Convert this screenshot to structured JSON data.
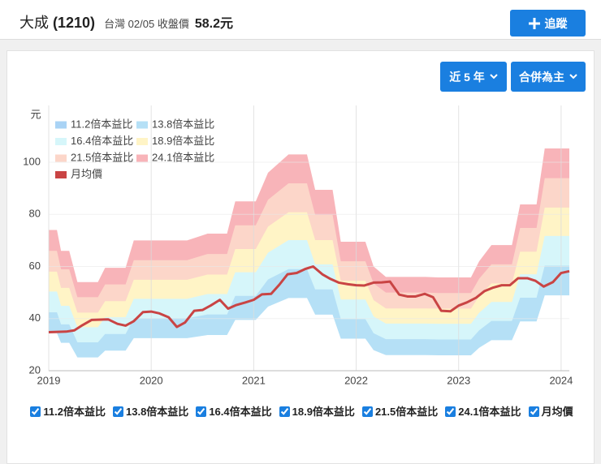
{
  "header": {
    "name": "大成",
    "code": "(1210)",
    "market_info": "台灣 02/05 收盤價",
    "price": "58.2元",
    "follow_button": "追蹤"
  },
  "controls": {
    "period": "近 5 年",
    "report": "合併為主"
  },
  "chart_data": {
    "type": "band",
    "y_unit": "元",
    "x": [
      2019.0,
      2019.08,
      2019.12,
      2019.2,
      2019.28,
      2019.48,
      2019.55,
      2019.75,
      2019.83,
      2020.35,
      2020.55,
      2020.74,
      2020.82,
      2021.02,
      2021.14,
      2021.34,
      2021.52,
      2021.6,
      2021.77,
      2021.85,
      2022.09,
      2022.17,
      2022.29,
      2022.68,
      2022.8,
      2023.12,
      2023.2,
      2023.32,
      2023.52,
      2023.6,
      2023.76,
      2023.84,
      2024.08
    ],
    "series": [
      {
        "name": "11.2倍本益比",
        "color": "#a9d3f5",
        "values": [
          34.4,
          34.4,
          30.7,
          30.7,
          25.1,
          25.1,
          27.7,
          27.7,
          32.5,
          32.5,
          33.7,
          33.7,
          39.5,
          39.5,
          44.6,
          47.9,
          47.9,
          41.5,
          41.5,
          32.3,
          32.3,
          27.9,
          26.0,
          26.0,
          25.9,
          25.9,
          28.8,
          31.7,
          31.7,
          38.9,
          38.9,
          48.9,
          48.9
        ]
      },
      {
        "name": "13.8倍本益比",
        "color": "#b5e0f6",
        "values": [
          42.4,
          42.4,
          37.8,
          37.8,
          30.9,
          30.9,
          34.1,
          34.1,
          40.1,
          40.1,
          41.6,
          41.6,
          48.7,
          48.7,
          55.0,
          59.0,
          59.0,
          51.2,
          51.2,
          39.8,
          39.8,
          34.4,
          32.1,
          32.1,
          32.0,
          32.0,
          35.5,
          39.1,
          39.1,
          48.0,
          48.0,
          60.3,
          60.3
        ]
      },
      {
        "name": "16.4倍本益比",
        "color": "#d6f6fa",
        "values": [
          50.4,
          50.4,
          44.9,
          44.9,
          36.7,
          36.7,
          40.5,
          40.5,
          47.6,
          47.6,
          49.4,
          49.4,
          57.8,
          57.8,
          65.3,
          70.1,
          70.1,
          60.8,
          60.8,
          47.3,
          47.3,
          40.8,
          38.1,
          38.1,
          38.0,
          38.0,
          42.2,
          46.4,
          46.4,
          57.0,
          57.0,
          71.7,
          71.7
        ]
      },
      {
        "name": "18.9倍本益比",
        "color": "#fff4c6",
        "values": [
          58.0,
          58.0,
          51.8,
          51.8,
          42.3,
          42.3,
          46.7,
          46.7,
          54.9,
          54.9,
          56.9,
          56.9,
          66.7,
          66.7,
          75.3,
          80.8,
          80.8,
          70.1,
          70.1,
          54.5,
          54.5,
          47.1,
          43.9,
          43.9,
          43.8,
          43.8,
          48.6,
          53.5,
          53.5,
          65.7,
          65.7,
          82.6,
          82.6
        ]
      },
      {
        "name": "21.5倍本益比",
        "color": "#fcd6c9",
        "values": [
          66.0,
          66.0,
          58.9,
          58.9,
          48.2,
          48.2,
          53.1,
          53.1,
          62.4,
          62.4,
          64.8,
          64.8,
          75.8,
          75.8,
          85.6,
          91.9,
          91.9,
          79.8,
          79.8,
          62.0,
          62.0,
          53.5,
          50.0,
          50.0,
          49.8,
          49.8,
          55.3,
          60.8,
          60.8,
          74.8,
          74.8,
          93.9,
          93.9
        ]
      },
      {
        "name": "24.1倍本益比",
        "color": "#f8b4b9",
        "values": [
          74,
          74,
          66,
          66,
          54,
          54,
          59.5,
          59.5,
          70,
          70,
          72.6,
          72.6,
          85,
          85,
          96,
          103,
          103,
          89.4,
          89.4,
          69.5,
          69.5,
          60,
          56,
          56,
          55.8,
          55.8,
          62,
          68.2,
          68.2,
          83.8,
          83.8,
          105.3,
          105.3
        ]
      },
      {
        "name": "月均價",
        "color": "#c94444",
        "type": "line",
        "x": [
          2019.0,
          2019.17,
          2019.25,
          2019.33,
          2019.42,
          2019.58,
          2019.67,
          2019.75,
          2019.83,
          2019.92,
          2020.0,
          2020.08,
          2020.17,
          2020.25,
          2020.33,
          2020.42,
          2020.5,
          2020.58,
          2020.67,
          2020.75,
          2020.83,
          2020.92,
          2021.0,
          2021.08,
          2021.17,
          2021.25,
          2021.33,
          2021.42,
          2021.5,
          2021.58,
          2021.67,
          2021.75,
          2021.83,
          2021.92,
          2022.0,
          2022.08,
          2022.17,
          2022.25,
          2022.33,
          2022.42,
          2022.5,
          2022.58,
          2022.67,
          2022.75,
          2022.83,
          2022.92,
          2023.0,
          2023.08,
          2023.17,
          2023.25,
          2023.33,
          2023.42,
          2023.5,
          2023.58,
          2023.67,
          2023.75,
          2023.83,
          2023.92,
          2024.0,
          2024.08
        ],
        "values": [
          34.8,
          35,
          35.5,
          37.5,
          39.5,
          39.7,
          38,
          37.3,
          39,
          42.5,
          42.7,
          42,
          40.5,
          36.8,
          38.5,
          43,
          43.3,
          45,
          47.2,
          43.8,
          45.2,
          46.2,
          47.2,
          49.3,
          49.5,
          53,
          57,
          57.5,
          59,
          60,
          57,
          55.2,
          53.8,
          53.2,
          52.8,
          52.7,
          53.8,
          53.9,
          54.2,
          49.2,
          48.5,
          48.5,
          49.5,
          48.2,
          43,
          42.8,
          45,
          46.2,
          48,
          50.5,
          51.8,
          52.8,
          52.8,
          55.5,
          55.5,
          54.5,
          52.3,
          54,
          57.5,
          58.2
        ]
      }
    ],
    "xlim": [
      2019,
      2024.08
    ],
    "xticks": [
      2019,
      2020,
      2021,
      2022,
      2023,
      2024
    ],
    "ylim": [
      20,
      120
    ],
    "yticks": [
      20,
      40,
      60,
      80,
      100
    ],
    "grid": true,
    "legend": "top-left"
  }
}
